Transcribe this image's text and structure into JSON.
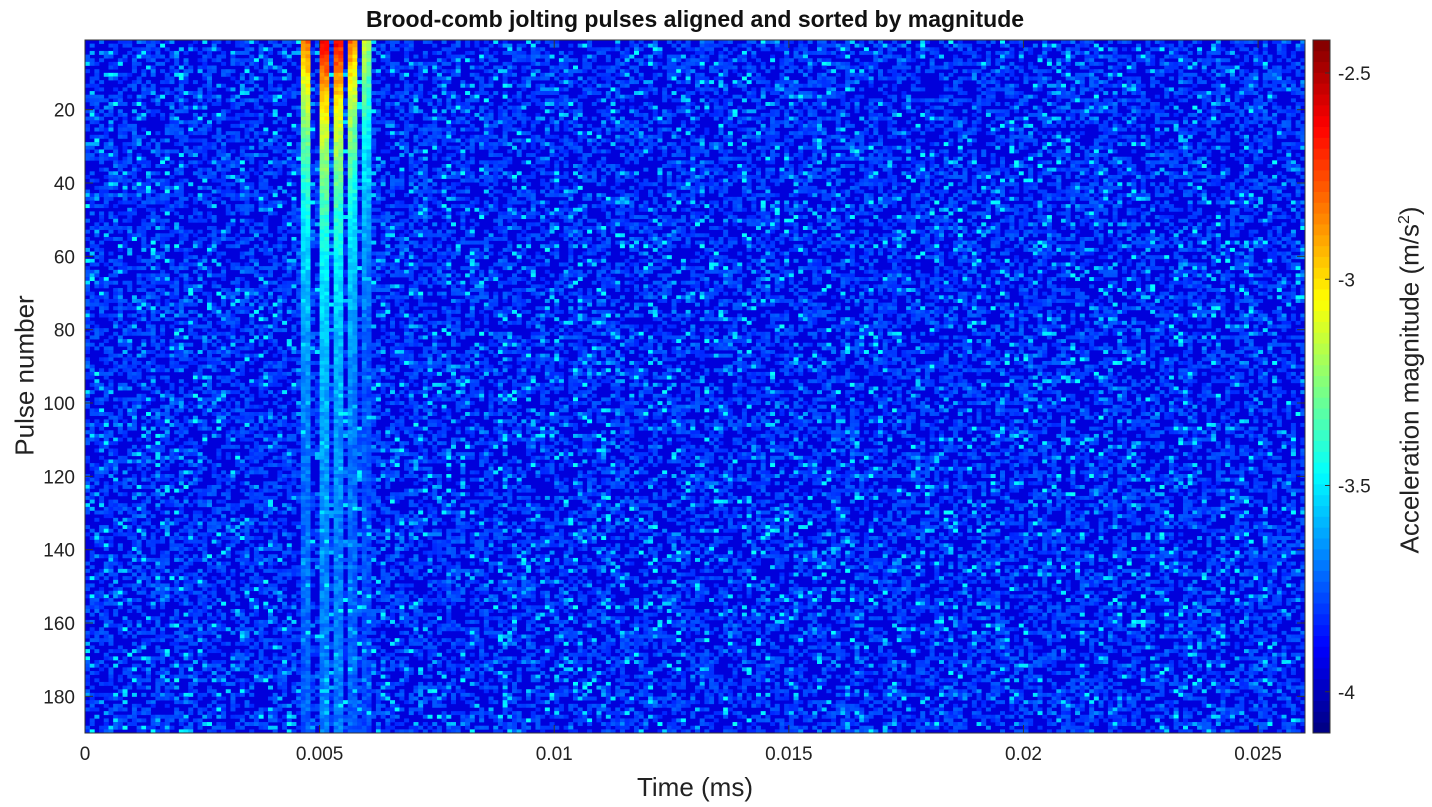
{
  "chart_data": {
    "type": "heatmap",
    "title": "Brood-comb jolting pulses aligned and sorted by magnitude",
    "xlabel": "Time (ms)",
    "ylabel": "Pulse number",
    "colorbar_label_prefix": "Acceleration magnitude (m/s",
    "colorbar_label_exp": "2",
    "colorbar_label_suffix": ")",
    "xlim": [
      0,
      0.026
    ],
    "ylim": [
      190,
      1
    ],
    "xticks": [
      0,
      0.005,
      0.01,
      0.015,
      0.02,
      0.025
    ],
    "xtick_labels": [
      "0",
      "0.005",
      "0.01",
      "0.015",
      "0.02",
      "0.025"
    ],
    "yticks": [
      20,
      40,
      60,
      80,
      100,
      120,
      140,
      160,
      180
    ],
    "ytick_labels": [
      "20",
      "40",
      "60",
      "80",
      "100",
      "120",
      "140",
      "160",
      "180"
    ],
    "clim": [
      -4.1,
      -2.42
    ],
    "cticks": [
      -4,
      -3.5,
      -3,
      -2.5
    ],
    "ctick_labels": [
      "-4",
      "-3.5",
      "-3",
      "-2.5"
    ],
    "colormap": "jet",
    "n_pulses": 190,
    "n_time_bins": 260,
    "background_level": -3.95,
    "noise_level_range": [
      -3.95,
      -3.45
    ],
    "pulse_ridges_ms": [
      0.0047,
      0.0051,
      0.0054,
      0.0057,
      0.006
    ],
    "peak_level": -2.45,
    "peak_time_ms": 0.0052,
    "grid": false
  }
}
